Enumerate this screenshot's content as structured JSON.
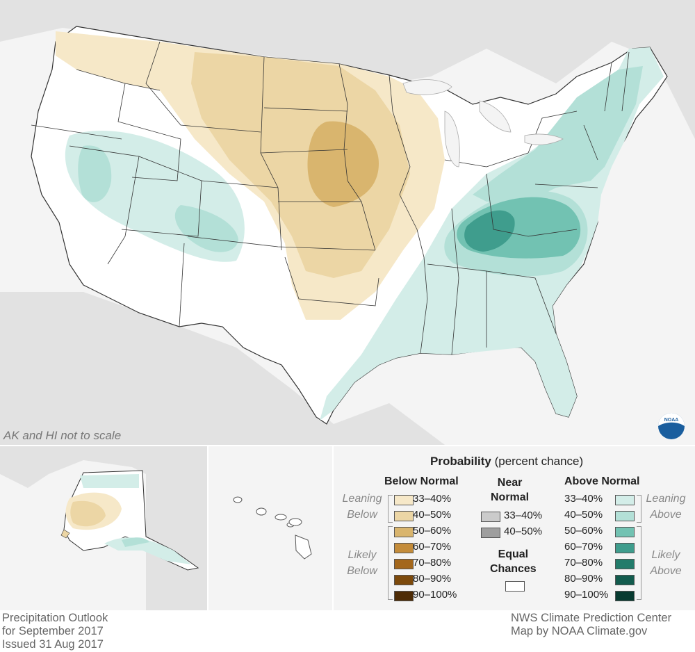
{
  "map_note": "AK and HI not to scale",
  "footer_left": [
    "Precipitation Outlook",
    "for September 2017",
    "Issued 31 Aug 2017"
  ],
  "footer_right": [
    "NWS Climate Prediction Center",
    "Map by NOAA Climate.gov"
  ],
  "logo_text": "NOAA",
  "legend": {
    "title_bold": "Probability",
    "title_rest": "(percent chance)",
    "below": {
      "heading": "Below Normal",
      "leaning_label": [
        "Leaning",
        "Below"
      ],
      "likely_label": [
        "Likely",
        "Below"
      ],
      "items": [
        {
          "label": "33–40%",
          "color": "#f6e8c8"
        },
        {
          "label": "40–50%",
          "color": "#ecd6a5"
        },
        {
          "label": "50–60%",
          "color": "#d9b56e"
        },
        {
          "label": "60–70%",
          "color": "#c48c3a"
        },
        {
          "label": "70–80%",
          "color": "#a4671c"
        },
        {
          "label": "80–90%",
          "color": "#7d4a0c"
        },
        {
          "label": "90–100%",
          "color": "#4e2c06"
        }
      ]
    },
    "near": {
      "heading": [
        "Near",
        "Normal"
      ],
      "items": [
        {
          "label": "33–40%",
          "color": "#cbcbcb"
        },
        {
          "label": "40–50%",
          "color": "#9e9e9e"
        }
      ],
      "equal_heading": [
        "Equal",
        "Chances"
      ],
      "equal_color": "#ffffff"
    },
    "above": {
      "heading": "Above Normal",
      "leaning_label": [
        "Leaning",
        "Above"
      ],
      "likely_label": [
        "Likely",
        "Above"
      ],
      "items": [
        {
          "label": "33–40%",
          "color": "#d3ede8"
        },
        {
          "label": "40–50%",
          "color": "#b3e0d7"
        },
        {
          "label": "50–60%",
          "color": "#72c2b2"
        },
        {
          "label": "60–70%",
          "color": "#3f9d8d"
        },
        {
          "label": "70–80%",
          "color": "#237c6b"
        },
        {
          "label": "80–90%",
          "color": "#125b4d"
        },
        {
          "label": "90–100%",
          "color": "#083b31"
        }
      ]
    }
  },
  "colors": {
    "background_land": "#e2e2e2",
    "water": "#f4f4f4",
    "equal_chances": "#ffffff",
    "state_lines": "#333333"
  }
}
